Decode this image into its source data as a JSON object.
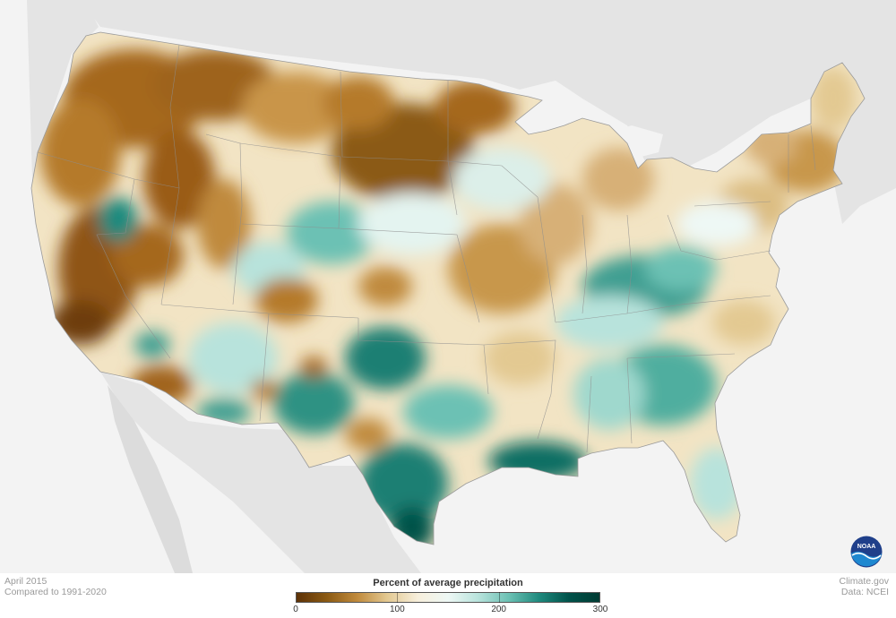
{
  "map": {
    "region": "Contiguous United States",
    "basemap_color": "#e2e2e2",
    "ocean_color": "#f3f3f3",
    "highlight_colors": {
      "very_dry": "#6b3c07",
      "dry": "#bf8a3a",
      "near_normal": "#fafaf4",
      "wet": "#7fcfc3",
      "very_wet": "#00665c"
    }
  },
  "footer": {
    "date": "April 2015",
    "comparison": "Compared to 1991-2020",
    "source_site": "Climate.gov",
    "source_data": "Data: NCEI"
  },
  "legend": {
    "title": "Percent of average precipitation",
    "ticks": [
      "0",
      "100",
      "200",
      "300"
    ],
    "tick_values": [
      0,
      100,
      200,
      300
    ],
    "range": [
      0,
      300
    ],
    "colors": [
      "#5d3207",
      "#8b5a13",
      "#c08a3c",
      "#e3c992",
      "#f7efdc",
      "#eef8f5",
      "#b8e3dc",
      "#6cc1b4",
      "#1f8a7e",
      "#00524a",
      "#003b33"
    ]
  },
  "logo": {
    "label": "NOAA",
    "icon": "noaa-logo-icon"
  }
}
